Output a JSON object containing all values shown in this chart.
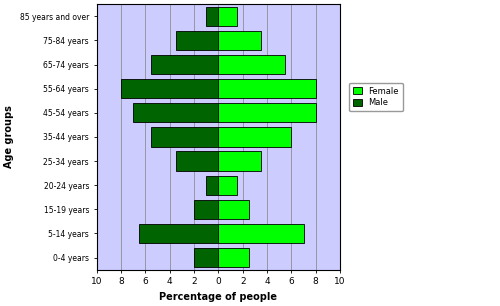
{
  "age_groups_bottom_to_top": [
    "0-4 years",
    "5-14 years",
    "15-19 years",
    "20-24 years",
    "25-34 years",
    "35-44 years",
    "45-54 years",
    "55-64 years",
    "65-74 years",
    "75-84 years",
    "85 years and over"
  ],
  "male_values_bottom_to_top": [
    2.0,
    6.5,
    2.0,
    1.0,
    3.5,
    5.5,
    7.0,
    8.0,
    5.5,
    3.5,
    1.0
  ],
  "female_values_bottom_to_top": [
    2.5,
    7.0,
    2.5,
    1.5,
    3.5,
    6.0,
    8.0,
    8.0,
    5.5,
    3.5,
    1.5
  ],
  "male_color": "#006400",
  "female_color": "#00ff00",
  "male_edgecolor": "#000000",
  "female_edgecolor": "#000000",
  "background_color": "#ccccff",
  "xlabel": "Percentage of people",
  "ylabel": "Age groups",
  "xlim": [
    -10,
    10
  ],
  "xticks": [
    -10,
    -8,
    -6,
    -4,
    -2,
    0,
    2,
    4,
    6,
    8,
    10
  ],
  "xticklabels": [
    "10",
    "8",
    "6",
    "4",
    "2",
    "0",
    "2",
    "4",
    "6",
    "8",
    "10"
  ],
  "bar_height": 0.8,
  "legend_female": "Female",
  "legend_male": "Male",
  "figwidth": 5.0,
  "figheight": 3.06,
  "dpi": 100
}
